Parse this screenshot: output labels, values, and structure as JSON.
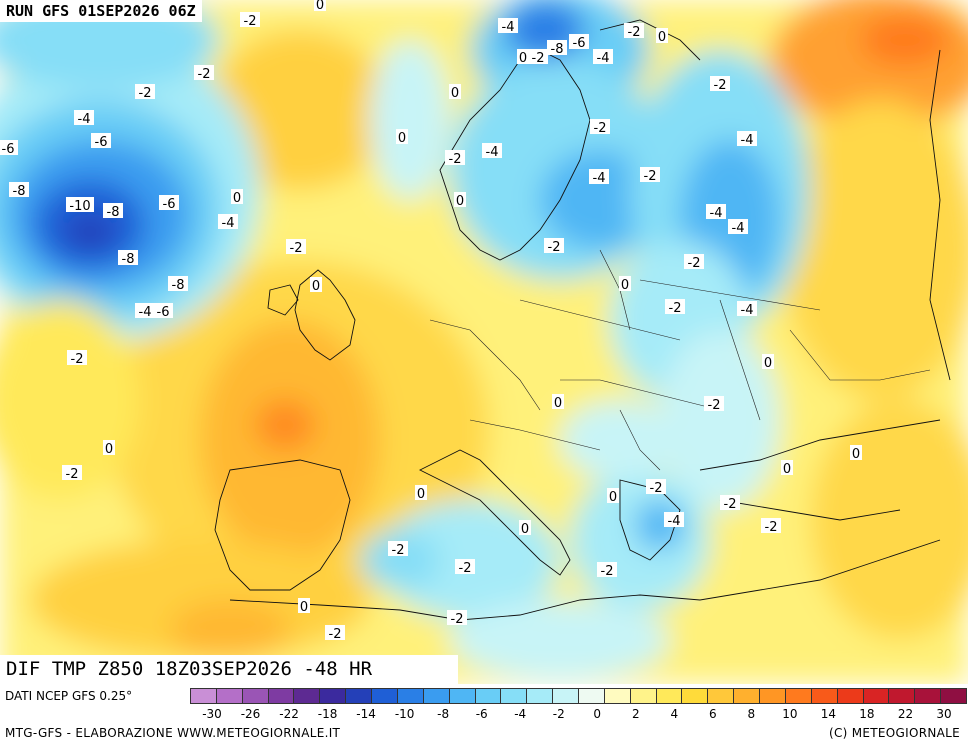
{
  "header": {
    "run": "RUN GFS 01SEP2026 06Z"
  },
  "title": "DIF TMP Z850 18Z03SEP2026 -48 HR",
  "source": "DATI NCEP GFS 0.25°",
  "credit_left": "MTG-GFS - ELABORAZIONE WWW.METEOGIORNALE.IT",
  "credit_right": "(C) METEOGIORNALE",
  "scale": {
    "colors": [
      "#c98fd6",
      "#b46fc8",
      "#9a55b5",
      "#7e3ba2",
      "#5d2a92",
      "#3b2a9e",
      "#2440b8",
      "#1f5fd6",
      "#2a7fe6",
      "#3a9cf0",
      "#4fb6f4",
      "#69cdf6",
      "#86def7",
      "#a6ebf8",
      "#c8f4f7",
      "#eefaf2",
      "#fffbc0",
      "#fff38a",
      "#ffe95a",
      "#ffdb3a",
      "#ffc83a",
      "#ffb02e",
      "#ff9624",
      "#ff7a1e",
      "#f85a1a",
      "#ec3a1a",
      "#d92424",
      "#c0182e",
      "#a8123a",
      "#8f0f42"
    ],
    "ticks": [
      "-30",
      "-26",
      "-22",
      "-18",
      "-14",
      "-10",
      "-8",
      "-6",
      "-4",
      "-2",
      "0",
      "2",
      "4",
      "6",
      "8",
      "10",
      "14",
      "18",
      "22",
      "30"
    ]
  },
  "map_labels": [
    {
      "text": "-2"
    },
    {
      "text": "0"
    },
    {
      "text": "-4"
    },
    {
      "text": "-2"
    },
    {
      "text": "0"
    },
    {
      "text": "0"
    },
    {
      "text": "-2"
    },
    {
      "text": "-8"
    },
    {
      "text": "-6"
    },
    {
      "text": "-4"
    },
    {
      "text": "-2"
    },
    {
      "text": "-2"
    },
    {
      "text": "-4"
    },
    {
      "text": "-6"
    },
    {
      "text": "-2"
    },
    {
      "text": "0"
    },
    {
      "text": "-2"
    },
    {
      "text": "-4"
    },
    {
      "text": "0"
    },
    {
      "text": "-4"
    },
    {
      "text": "-2"
    },
    {
      "text": "-4"
    },
    {
      "text": "-2"
    },
    {
      "text": "-8"
    },
    {
      "text": "-10"
    },
    {
      "text": "-8"
    },
    {
      "text": "-6"
    },
    {
      "text": "0"
    },
    {
      "text": "-4"
    },
    {
      "text": "0"
    },
    {
      "text": "-4"
    },
    {
      "text": "-2"
    },
    {
      "text": "-4"
    },
    {
      "text": "-6"
    },
    {
      "text": "-8"
    },
    {
      "text": "-8"
    },
    {
      "text": "-2"
    },
    {
      "text": "0"
    },
    {
      "text": "-2"
    },
    {
      "text": "-4"
    },
    {
      "text": "-6"
    },
    {
      "text": "-2"
    },
    {
      "text": "-4"
    },
    {
      "text": "0"
    },
    {
      "text": "-2"
    },
    {
      "text": "0"
    },
    {
      "text": "-2"
    },
    {
      "text": "0"
    },
    {
      "text": "-2"
    },
    {
      "text": "0"
    },
    {
      "text": "0"
    },
    {
      "text": "0"
    },
    {
      "text": "-2"
    },
    {
      "text": "0"
    },
    {
      "text": "-4"
    },
    {
      "text": "-2"
    },
    {
      "text": "0"
    },
    {
      "text": "-2"
    },
    {
      "text": "-2"
    },
    {
      "text": "-2"
    },
    {
      "text": "0"
    },
    {
      "text": "-2"
    },
    {
      "text": "0"
    },
    {
      "text": "-2"
    },
    {
      "text": "-2"
    }
  ]
}
